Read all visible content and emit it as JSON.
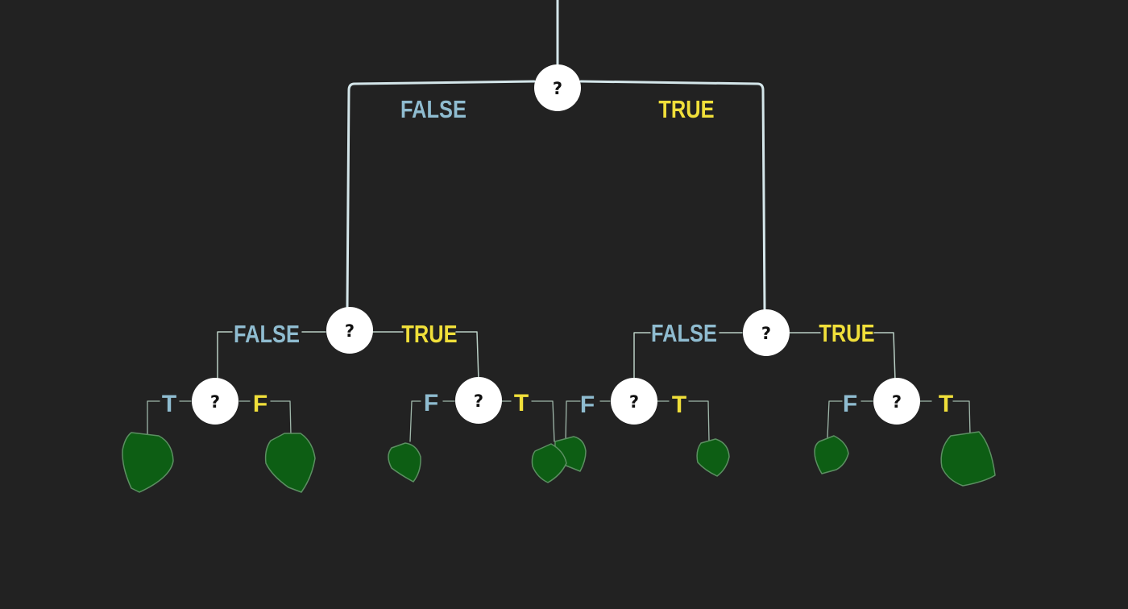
{
  "colors": {
    "background": "#222222",
    "false_label": "#8fbcd0",
    "true_label": "#f0df3a",
    "node_fill": "#ffffff",
    "node_text": "#111111",
    "edge": "#d4e6ea",
    "leaf_fill": "#0d5e14",
    "leaf_stroke": "#5c8f62"
  },
  "diagram": {
    "type": "decision-tree",
    "root": {
      "symbol": "?",
      "left_label": "FALSE",
      "right_label": "TRUE"
    },
    "level1": [
      {
        "symbol": "?",
        "left_label": "FALSE",
        "right_label": "TRUE"
      },
      {
        "symbol": "?",
        "left_label": "FALSE",
        "right_label": "TRUE"
      }
    ],
    "level2": [
      {
        "symbol": "?",
        "left_label": "T",
        "right_label": "F"
      },
      {
        "symbol": "?",
        "left_label": "F",
        "right_label": "T"
      },
      {
        "symbol": "?",
        "left_label": "F",
        "right_label": "T"
      },
      {
        "symbol": "?",
        "left_label": "F",
        "right_label": "T"
      }
    ],
    "leaf_icon": "leaf-icon",
    "leaf_count": 8
  }
}
